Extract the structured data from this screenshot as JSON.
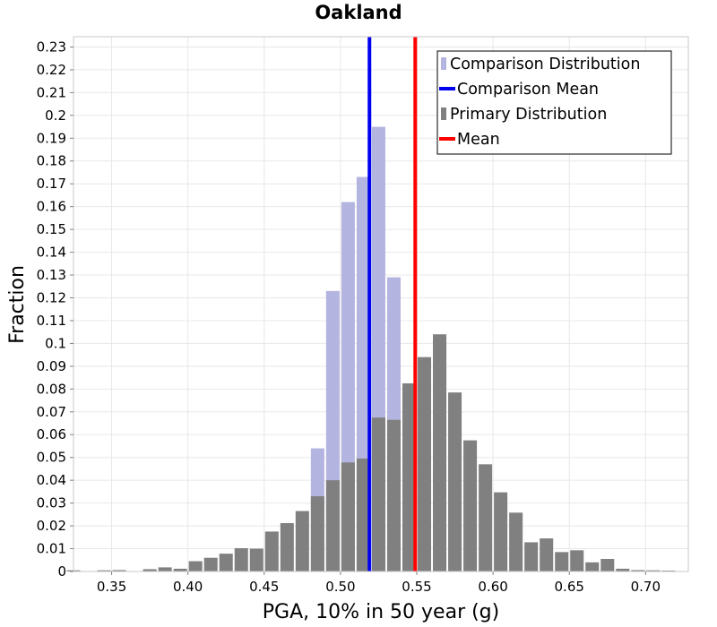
{
  "chart_data": {
    "type": "bar",
    "title": "Oakland",
    "xlabel": "PGA, 10% in 50 year (g)",
    "ylabel": "Fraction",
    "xlim": [
      0.325,
      0.728
    ],
    "ylim": [
      0,
      0.2345
    ],
    "bin_width": 0.01,
    "x_ticks": [
      {
        "value": 0.35,
        "label": "0.35"
      },
      {
        "value": 0.4,
        "label": "0.40"
      },
      {
        "value": 0.45,
        "label": "0.45"
      },
      {
        "value": 0.5,
        "label": "0.50"
      },
      {
        "value": 0.55,
        "label": "0.55"
      },
      {
        "value": 0.6,
        "label": "0.60"
      },
      {
        "value": 0.65,
        "label": "0.65"
      },
      {
        "value": 0.7,
        "label": "0.70"
      }
    ],
    "y_ticks": [
      {
        "value": 0,
        "label": "0"
      },
      {
        "value": 0.01,
        "label": "0.01"
      },
      {
        "value": 0.02,
        "label": "0.02"
      },
      {
        "value": 0.03,
        "label": "0.03"
      },
      {
        "value": 0.04,
        "label": "0.04"
      },
      {
        "value": 0.05,
        "label": "0.05"
      },
      {
        "value": 0.06,
        "label": "0.06"
      },
      {
        "value": 0.07,
        "label": "0.07"
      },
      {
        "value": 0.08,
        "label": "0.08"
      },
      {
        "value": 0.09,
        "label": "0.09"
      },
      {
        "value": 0.1,
        "label": "0.1"
      },
      {
        "value": 0.11,
        "label": "0.11"
      },
      {
        "value": 0.12,
        "label": "0.12"
      },
      {
        "value": 0.13,
        "label": "0.13"
      },
      {
        "value": 0.14,
        "label": "0.14"
      },
      {
        "value": 0.15,
        "label": "0.15"
      },
      {
        "value": 0.16,
        "label": "0.16"
      },
      {
        "value": 0.17,
        "label": "0.17"
      },
      {
        "value": 0.18,
        "label": "0.18"
      },
      {
        "value": 0.19,
        "label": "0.19"
      },
      {
        "value": 0.2,
        "label": "0.2"
      },
      {
        "value": 0.21,
        "label": "0.21"
      },
      {
        "value": 0.22,
        "label": "0.22"
      },
      {
        "value": 0.23,
        "label": "0.23"
      }
    ],
    "grid": true,
    "legend_position": "top-right",
    "series": [
      {
        "name": "Comparison Distribution",
        "kind": "bars",
        "color": "#b4b4e0",
        "x": [
          0.485,
          0.495,
          0.505,
          0.515,
          0.525,
          0.535
        ],
        "values": [
          0.054,
          0.123,
          0.162,
          0.173,
          0.195,
          0.129
        ]
      },
      {
        "name": "Comparison Mean",
        "kind": "vline",
        "color": "#0000ee",
        "value": 0.519
      },
      {
        "name": "Primary Distribution",
        "kind": "bars",
        "color": "#808080",
        "x": [
          0.325,
          0.335,
          0.345,
          0.355,
          0.365,
          0.375,
          0.385,
          0.395,
          0.405,
          0.415,
          0.425,
          0.435,
          0.445,
          0.455,
          0.465,
          0.475,
          0.485,
          0.495,
          0.505,
          0.515,
          0.525,
          0.535,
          0.545,
          0.555,
          0.565,
          0.575,
          0.585,
          0.595,
          0.605,
          0.615,
          0.625,
          0.635,
          0.645,
          0.655,
          0.665,
          0.675,
          0.685,
          0.695,
          0.705,
          0.715
        ],
        "values": [
          0.0005,
          0.0002,
          0.0005,
          0.0006,
          0.0001,
          0.001,
          0.0018,
          0.0012,
          0.0045,
          0.006,
          0.0078,
          0.0102,
          0.01,
          0.0175,
          0.0212,
          0.0265,
          0.033,
          0.04,
          0.0478,
          0.0495,
          0.0675,
          0.0665,
          0.0825,
          0.094,
          0.104,
          0.0785,
          0.0575,
          0.047,
          0.0347,
          0.0258,
          0.0128,
          0.0145,
          0.0085,
          0.0093,
          0.004,
          0.0055,
          0.0012,
          0.0006,
          0.0005,
          0.0004
        ]
      },
      {
        "name": "Mean",
        "kind": "vline",
        "color": "#ff0000",
        "value": 0.549
      }
    ]
  }
}
